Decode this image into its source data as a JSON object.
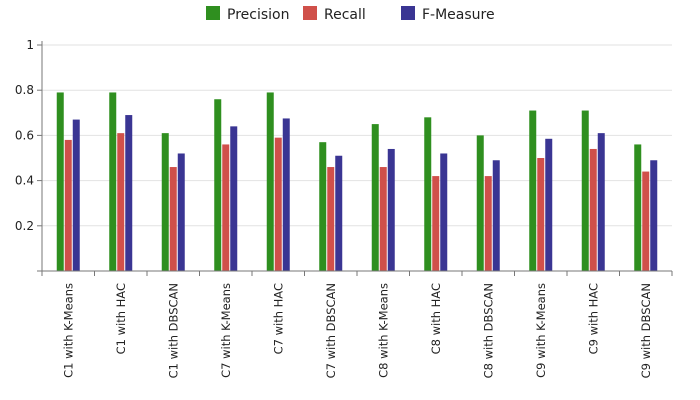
{
  "chart_data": {
    "type": "bar",
    "title": "",
    "xlabel": "",
    "ylabel": "",
    "ylim": [
      0,
      1
    ],
    "yticks": [
      "0.2",
      "0.4",
      "0.6",
      "0.8",
      "1"
    ],
    "grid": true,
    "legend_position": "top-center",
    "categories": [
      "C1 with K-Means",
      "C1 with HAC",
      "C1 with DBSCAN",
      "C7 with K-Means",
      "C7 with HAC",
      "C7 with DBSCAN",
      "C8 with K-Means",
      "C8 with HAC",
      "C8 with DBSCAN",
      "C9 with K-Means",
      "C9 with HAC",
      "C9 with DBSCAN"
    ],
    "series": [
      {
        "name": "Precision",
        "color": "#2f8f1f",
        "values": [
          0.79,
          0.79,
          0.61,
          0.76,
          0.79,
          0.57,
          0.65,
          0.68,
          0.6,
          0.71,
          0.71,
          0.56
        ]
      },
      {
        "name": "Recall",
        "color": "#d0504a",
        "values": [
          0.58,
          0.61,
          0.46,
          0.56,
          0.59,
          0.46,
          0.46,
          0.42,
          0.42,
          0.5,
          0.54,
          0.44
        ]
      },
      {
        "name": "F-Measure",
        "color": "#3a3593",
        "values": [
          0.67,
          0.69,
          0.52,
          0.64,
          0.675,
          0.51,
          0.54,
          0.52,
          0.49,
          0.585,
          0.61,
          0.49
        ]
      }
    ]
  }
}
